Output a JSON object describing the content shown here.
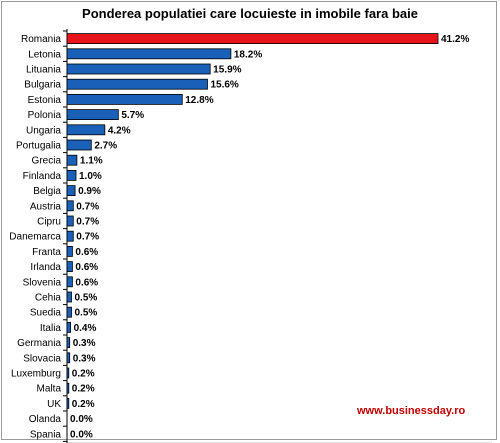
{
  "chart_data": {
    "type": "bar",
    "orientation": "horizontal",
    "title": "Ponderea populatiei care locuieste in imobile fara baie",
    "categories": [
      "Romania",
      "Letonia",
      "Lituania",
      "Bulgaria",
      "Estonia",
      "Polonia",
      "Ungaria",
      "Portugalia",
      "Grecia",
      "Finlanda",
      "Belgia",
      "Austria",
      "Cipru",
      "Danemarca",
      "Franta",
      "Irlanda",
      "Slovenia",
      "Cehia",
      "Suedia",
      "Italia",
      "Germania",
      "Slovacia",
      "Luxemburg",
      "Malta",
      "UK",
      "Olanda",
      "Spania"
    ],
    "values": [
      41.2,
      18.2,
      15.9,
      15.6,
      12.8,
      5.7,
      4.2,
      2.7,
      1.1,
      1.0,
      0.9,
      0.7,
      0.7,
      0.7,
      0.6,
      0.6,
      0.6,
      0.5,
      0.5,
      0.4,
      0.3,
      0.3,
      0.2,
      0.2,
      0.2,
      0.0,
      0.0
    ],
    "value_labels": [
      "41.2%",
      "18.2%",
      "15.9%",
      "15.6%",
      "12.8%",
      "5.7%",
      "4.2%",
      "2.7%",
      "1.1%",
      "1.0%",
      "0.9%",
      "0.7%",
      "0.7%",
      "0.7%",
      "0.6%",
      "0.6%",
      "0.6%",
      "0.5%",
      "0.5%",
      "0.4%",
      "0.3%",
      "0.3%",
      "0.2%",
      "0.2%",
      "0.2%",
      "0.0%",
      "0.0%"
    ],
    "highlight_category": "Romania",
    "xlim": [
      0,
      42
    ],
    "grid": false,
    "colors": {
      "highlight": "#e8141b",
      "default": "#1a5fb8",
      "bar_edge": "#000000"
    }
  },
  "watermark": {
    "text": "www.businessday.ro",
    "color": "#c00000"
  }
}
